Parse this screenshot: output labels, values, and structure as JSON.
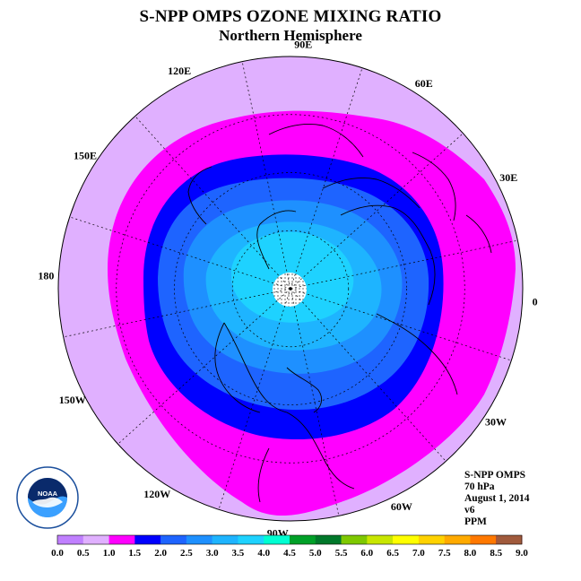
{
  "header": {
    "title": "S-NPP OMPS OZONE MIXING RATIO",
    "subtitle": "Northern Hemisphere"
  },
  "longitude_labels": [
    "90E",
    "60E",
    "30E",
    "0",
    "30W",
    "60W",
    "90W",
    "120W",
    "150W",
    "180",
    "150E",
    "120E"
  ],
  "info": {
    "instrument": "S-NPP OMPS",
    "level": "70 hPa",
    "date": "August 1, 2014",
    "version": "v6",
    "units": "PPM"
  },
  "logo": {
    "name": "NOAA",
    "ring_text": "NATIONAL OCEANIC AND ATMOSPHERIC ADMINISTRATION · U.S. DEPARTMENT OF COMMERCE"
  },
  "colorbar": {
    "labels": [
      "0.0",
      "0.5",
      "1.0",
      "1.5",
      "2.0",
      "2.5",
      "3.0",
      "3.5",
      "4.0",
      "4.5",
      "5.0",
      "5.5",
      "6.0",
      "6.5",
      "7.0",
      "7.5",
      "8.0",
      "8.5",
      "9.0"
    ],
    "colors": [
      "#c080ff",
      "#e0b0ff",
      "#ff00ff",
      "#0000ff",
      "#1e64ff",
      "#1e90ff",
      "#1eb4ff",
      "#1ed2ff",
      "#00ffd2",
      "#00a028",
      "#00782a",
      "#7ec800",
      "#c8e600",
      "#ffff00",
      "#ffd200",
      "#ffaa00",
      "#ff7800",
      "#ff0000",
      "#a05a3c"
    ]
  },
  "map_colors": {
    "pale_violet": "#e0b0ff",
    "magenta": "#ff00ff",
    "dark_blue": "#0000ff",
    "blue": "#1e64ff",
    "mid_blue": "#1e90ff",
    "light_blue": "#1eb4ff",
    "cyan_blue": "#1ed2ff",
    "pole_hole": "#ffffff"
  }
}
